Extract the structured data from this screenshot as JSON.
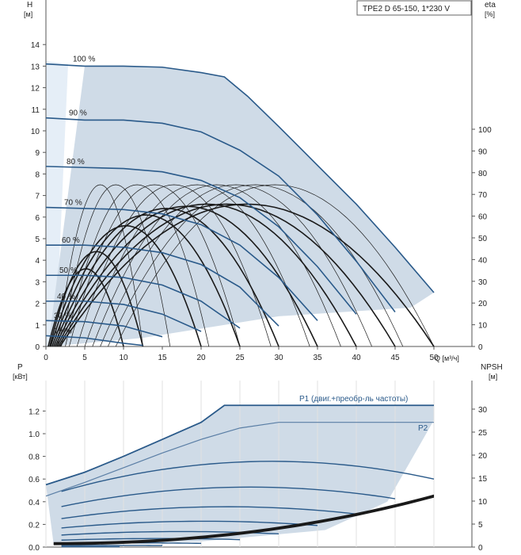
{
  "header": {
    "title": "TPE2 D 65-150, 1*230 V"
  },
  "top_chart": {
    "ylabel": "H",
    "yunit": "[м]",
    "y2label": "eta",
    "y2unit": "[%]",
    "xlabel": "Q [м³/ч]",
    "xticks": [
      0,
      5,
      10,
      15,
      20,
      25,
      30,
      35,
      40,
      45,
      50
    ],
    "yticks": [
      0,
      1,
      2,
      3,
      4,
      5,
      6,
      7,
      8,
      9,
      10,
      11,
      12,
      13,
      14
    ],
    "y2ticks": [
      0,
      10,
      20,
      30,
      40,
      50,
      60,
      70,
      80,
      90,
      100
    ],
    "xlim": [
      0,
      50
    ],
    "ylim": [
      0,
      16
    ],
    "curve_labels": [
      "100 %",
      "90 %",
      "80 %",
      "70 %",
      "60 %",
      "50 %",
      "40 %",
      "30 %",
      "19 %"
    ]
  },
  "bottom_chart": {
    "ylabel": "P",
    "yunit": "[кВт]",
    "y2label": "NPSH",
    "y2unit": "[м]",
    "yticks": [
      "0.0",
      "0.2",
      "0.4",
      "0.6",
      "0.8",
      "1.0",
      "1.2"
    ],
    "y2ticks": [
      0,
      5,
      10,
      15,
      20,
      25,
      30
    ],
    "p1_label": "P1 (двиг.+преобр-ль частоты)",
    "p2_label": "P2"
  },
  "colors": {
    "curve": "#2a5a8a",
    "area": "#cfdbe7",
    "area_light": "#e5eef7",
    "eff": "#1a1a1a",
    "grid": "#e0e0e0",
    "axis": "#555555"
  },
  "chart_data": [
    {
      "type": "line",
      "title": "",
      "xlabel": "Q [м³/ч]",
      "ylabel": "H [м]",
      "xlim": [
        0,
        50
      ],
      "ylim": [
        0,
        16
      ],
      "series": [
        {
          "name": "100 %",
          "x": [
            0,
            5,
            10,
            15,
            20,
            23,
            26,
            30,
            35,
            40,
            45,
            50
          ],
          "y": [
            13.1,
            13.0,
            13.0,
            12.95,
            12.7,
            12.5,
            11.6,
            10.2,
            8.4,
            6.6,
            4.6,
            2.5
          ]
        },
        {
          "name": "90 %",
          "x": [
            0,
            5,
            10,
            15,
            20,
            25,
            30,
            35,
            40,
            45
          ],
          "y": [
            10.6,
            10.5,
            10.5,
            10.35,
            9.95,
            9.1,
            7.9,
            6.1,
            3.95,
            1.6
          ]
        },
        {
          "name": "80 %",
          "x": [
            0,
            5,
            10,
            15,
            20,
            25,
            30,
            35,
            40
          ],
          "y": [
            8.35,
            8.3,
            8.25,
            8.1,
            7.7,
            6.9,
            5.55,
            3.7,
            1.5
          ]
        },
        {
          "name": "70 %",
          "x": [
            0,
            5,
            10,
            15,
            20,
            25,
            30,
            35
          ],
          "y": [
            6.45,
            6.4,
            6.35,
            6.15,
            5.65,
            4.7,
            3.2,
            1.2
          ]
        },
        {
          "name": "60 %",
          "x": [
            0,
            5,
            10,
            15,
            20,
            25,
            30
          ],
          "y": [
            4.7,
            4.7,
            4.6,
            4.35,
            3.8,
            2.75,
            0.95
          ]
        },
        {
          "name": "50 %",
          "x": [
            0,
            5,
            10,
            15,
            20,
            25
          ],
          "y": [
            3.3,
            3.3,
            3.2,
            2.85,
            2.1,
            0.85
          ]
        },
        {
          "name": "40 %",
          "x": [
            0,
            5,
            10,
            15,
            20
          ],
          "y": [
            2.1,
            2.1,
            1.95,
            1.5,
            0.7
          ]
        },
        {
          "name": "30 %",
          "x": [
            0,
            5,
            10,
            15
          ],
          "y": [
            1.2,
            1.15,
            0.95,
            0.45
          ]
        },
        {
          "name": "19 %",
          "x": [
            0,
            5,
            10,
            12.5
          ],
          "y": [
            0.5,
            0.4,
            0.15,
            0.05
          ]
        }
      ]
    },
    {
      "type": "line",
      "title": "",
      "xlabel": "Q [м³/ч]",
      "ylabel": "P [кВт]",
      "xlim": [
        0,
        50
      ],
      "ylim": [
        0,
        1.4
      ],
      "series": [
        {
          "name": "P1 (двиг.+преобр-ль частоты)",
          "x": [
            0,
            5,
            10,
            15,
            20,
            23,
            30,
            35,
            40,
            45,
            50
          ],
          "y": [
            0.55,
            0.66,
            0.8,
            0.95,
            1.1,
            1.25,
            1.25,
            1.25,
            1.25,
            1.25,
            1.25
          ]
        },
        {
          "name": "P2",
          "x": [
            0,
            5,
            10,
            15,
            20,
            25,
            30,
            35,
            40,
            45,
            50
          ],
          "y": [
            0.45,
            0.57,
            0.7,
            0.83,
            0.95,
            1.05,
            1.1,
            1.1,
            1.1,
            1.1,
            1.1
          ]
        }
      ]
    }
  ]
}
